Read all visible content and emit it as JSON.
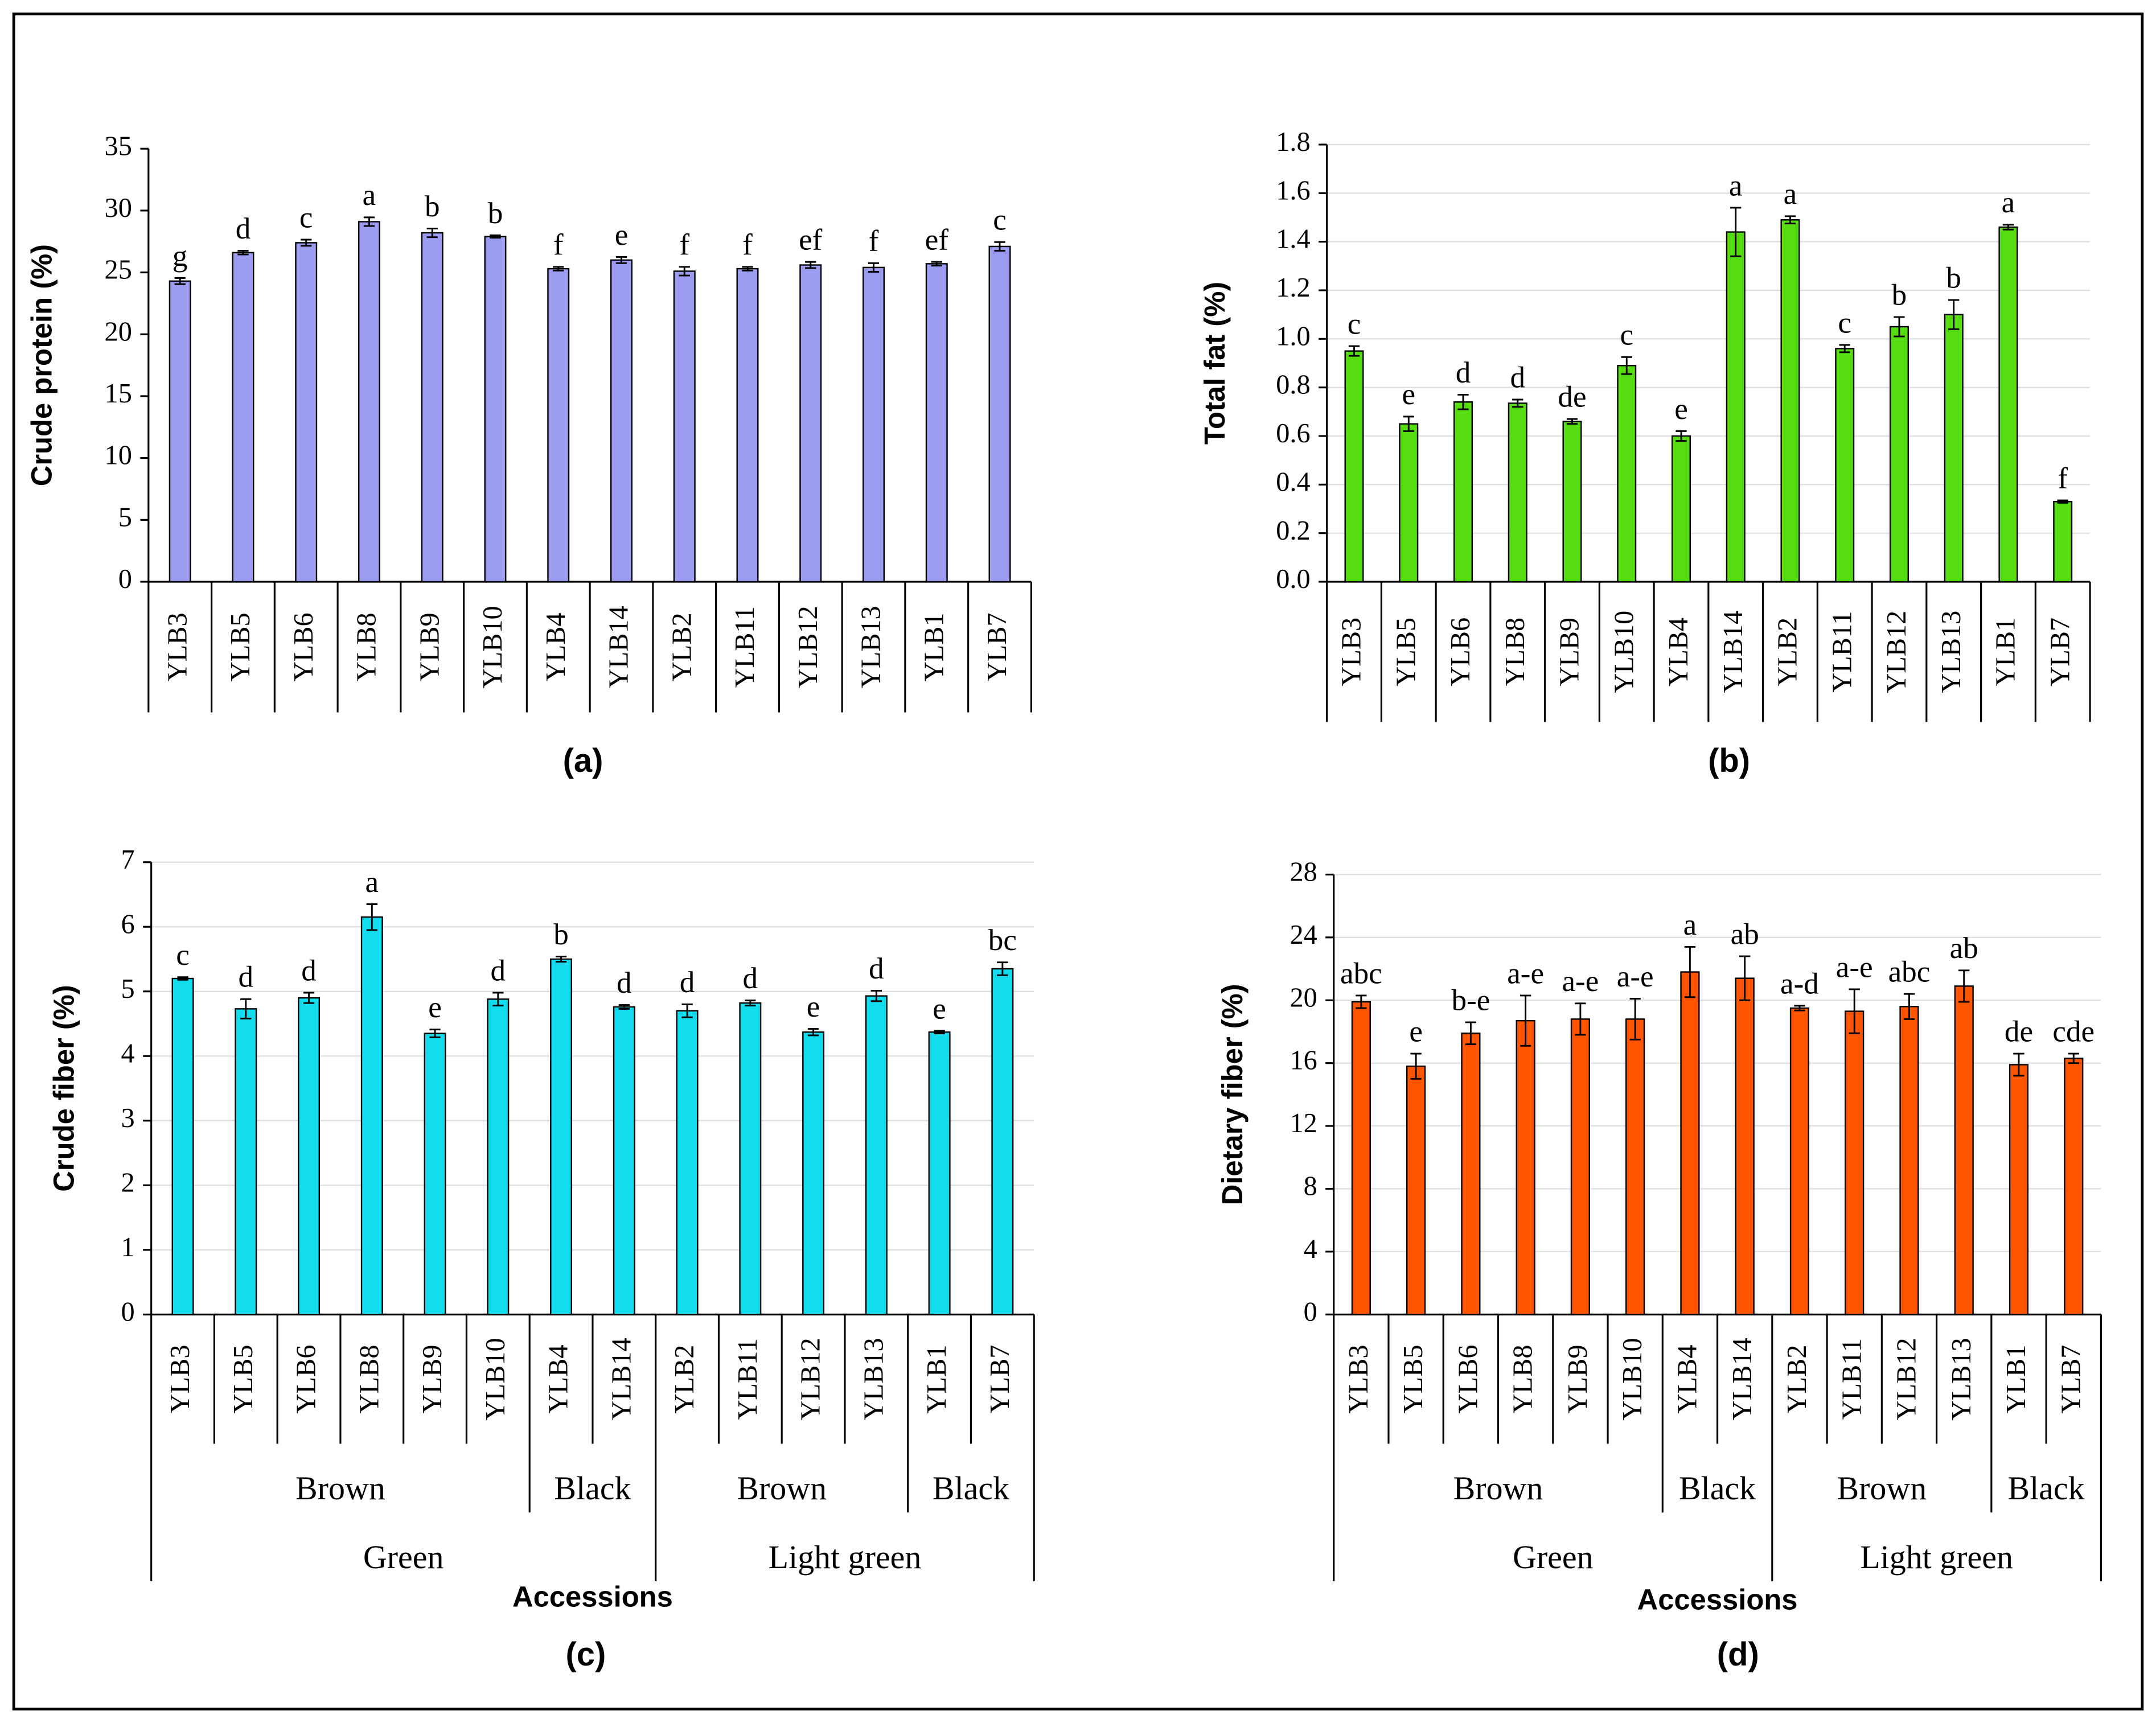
{
  "chart_data": [
    {
      "type": "bar",
      "panel": "(a)",
      "ylabel": "Crude protein (%)",
      "color": "#9c9cf0",
      "grid": false,
      "categories": [
        "YLB3",
        "YLB5",
        "YLB6",
        "YLB8",
        "YLB9",
        "YLB10",
        "YLB4",
        "YLB14",
        "YLB2",
        "YLB11",
        "YLB12",
        "YLB13",
        "YLB1",
        "YLB7"
      ],
      "values": [
        24.3,
        26.6,
        27.4,
        29.1,
        28.2,
        27.9,
        25.3,
        26.0,
        25.1,
        25.3,
        25.6,
        25.4,
        25.7,
        27.1
      ],
      "errors": [
        0.25,
        0.15,
        0.25,
        0.35,
        0.35,
        0.1,
        0.15,
        0.25,
        0.35,
        0.15,
        0.25,
        0.35,
        0.15,
        0.35
      ],
      "annotations": [
        "g",
        "d",
        "c",
        "a",
        "b",
        "b",
        "f",
        "e",
        "f",
        "f",
        "ef",
        "f",
        "ef",
        "c"
      ],
      "ylim": [
        0,
        35
      ],
      "yticks": [
        0,
        5,
        10,
        15,
        20,
        25,
        30,
        35
      ]
    },
    {
      "type": "bar",
      "panel": "(b)",
      "ylabel": "Total fat (%)",
      "color": "#55dd11",
      "grid": true,
      "categories": [
        "YLB3",
        "YLB5",
        "YLB6",
        "YLB8",
        "YLB9",
        "YLB10",
        "YLB4",
        "YLB14",
        "YLB2",
        "YLB11",
        "YLB12",
        "YLB13",
        "YLB1",
        "YLB7"
      ],
      "values": [
        0.95,
        0.65,
        0.74,
        0.735,
        0.66,
        0.89,
        0.6,
        1.44,
        1.49,
        0.96,
        1.05,
        1.1,
        1.46,
        0.33
      ],
      "errors": [
        0.02,
        0.03,
        0.03,
        0.015,
        0.01,
        0.035,
        0.02,
        0.1,
        0.015,
        0.015,
        0.04,
        0.06,
        0.01,
        0.005
      ],
      "annotations": [
        "c",
        "e",
        "d",
        "d",
        "de",
        "c",
        "e",
        "a",
        "a",
        "c",
        "b",
        "b",
        "a",
        "f"
      ],
      "ylim": [
        0,
        1.8
      ],
      "yticks": [
        {
          "value": 0,
          "label": "0.0"
        },
        {
          "value": 0.2,
          "label": "0.2"
        },
        {
          "value": 0.4,
          "label": "0.4"
        },
        {
          "value": 0.6,
          "label": "0.6"
        },
        {
          "value": 0.8,
          "label": "0.8"
        },
        {
          "value": 1,
          "label": "1.0"
        },
        {
          "value": 1.2,
          "label": "1.2"
        },
        {
          "value": 1.4,
          "label": "1.4"
        },
        {
          "value": 1.6,
          "label": "1.6"
        },
        {
          "value": 1.8,
          "label": "1.8"
        }
      ]
    },
    {
      "type": "bar",
      "panel": "(c)",
      "ylabel": "Crude fiber (%)",
      "xlabel": "Accessions",
      "color": "#11ddee",
      "grid": true,
      "categories": [
        "YLB3",
        "YLB5",
        "YLB6",
        "YLB8",
        "YLB9",
        "YLB10",
        "YLB4",
        "YLB14",
        "YLB2",
        "YLB11",
        "YLB12",
        "YLB13",
        "YLB1",
        "YLB7"
      ],
      "values": [
        5.2,
        4.73,
        4.9,
        6.15,
        4.35,
        4.88,
        5.5,
        4.76,
        4.7,
        4.82,
        4.37,
        4.93,
        4.37,
        5.35
      ],
      "errors": [
        0.02,
        0.15,
        0.08,
        0.2,
        0.06,
        0.1,
        0.04,
        0.03,
        0.1,
        0.04,
        0.05,
        0.08,
        0.02,
        0.1
      ],
      "annotations": [
        "c",
        "d",
        "d",
        "a",
        "e",
        "d",
        "b",
        "d",
        "d",
        "d",
        "e",
        "d",
        "e",
        "bc"
      ],
      "groups": [
        {
          "label": "Brown",
          "count": 6
        },
        {
          "label": "Black",
          "count": 2
        },
        {
          "label": "Brown",
          "count": 4
        },
        {
          "label": "Black",
          "count": 2
        }
      ],
      "outer_groups": [
        {
          "label": "Green",
          "count": 8
        },
        {
          "label": "Light green",
          "count": 6
        }
      ],
      "ylim": [
        0,
        7
      ],
      "yticks": [
        0,
        1,
        2,
        3,
        4,
        5,
        6,
        7
      ]
    },
    {
      "type": "bar",
      "panel": "(d)",
      "ylabel": "Dietary fiber (%)",
      "xlabel": "Accessions",
      "color": "#ff5500",
      "grid": true,
      "categories": [
        "YLB3",
        "YLB5",
        "YLB6",
        "YLB8",
        "YLB9",
        "YLB10",
        "YLB4",
        "YLB14",
        "YLB2",
        "YLB11",
        "YLB12",
        "YLB13",
        "YLB1",
        "YLB7"
      ],
      "values": [
        19.9,
        15.8,
        17.9,
        18.7,
        18.8,
        18.8,
        21.8,
        21.4,
        19.5,
        19.3,
        19.6,
        20.9,
        15.9,
        16.3
      ],
      "errors": [
        0.4,
        0.8,
        0.7,
        1.6,
        1.0,
        1.3,
        1.6,
        1.4,
        0.15,
        1.4,
        0.8,
        1.0,
        0.7,
        0.3
      ],
      "annotations": [
        "abc",
        "e",
        "b-e",
        "a-e",
        "a-e",
        "a-e",
        "a",
        "ab",
        "a-d",
        "a-e",
        "abc",
        "ab",
        "de",
        "cde"
      ],
      "groups": [
        {
          "label": "Brown",
          "count": 6
        },
        {
          "label": "Black",
          "count": 2
        },
        {
          "label": "Brown",
          "count": 4
        },
        {
          "label": "Black",
          "count": 2
        }
      ],
      "outer_groups": [
        {
          "label": "Green",
          "count": 8
        },
        {
          "label": "Light green",
          "count": 6
        }
      ],
      "ylim": [
        0,
        28
      ],
      "yticks": [
        0,
        4,
        8,
        12,
        16,
        20,
        24,
        28
      ]
    }
  ]
}
